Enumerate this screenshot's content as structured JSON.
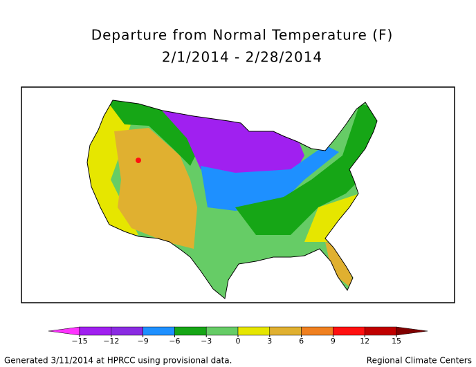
{
  "header": {
    "title": "Departure from Normal Temperature (F)",
    "subtitle": "2/1/2014 - 2/28/2014"
  },
  "legend": {
    "ticks": [
      {
        "value": -15,
        "label": "−15"
      },
      {
        "value": -12,
        "label": "−12"
      },
      {
        "value": -9,
        "label": "−9"
      },
      {
        "value": -6,
        "label": "−6"
      },
      {
        "value": -3,
        "label": "−3"
      },
      0,
      3,
      6,
      9,
      12,
      15
    ],
    "colors": [
      "#ff33ff",
      "#a020f0",
      "#8a2be2",
      "#1e90ff",
      "#16a616",
      "#66cc66",
      "#e6e600",
      "#e0b030",
      "#f08020",
      "#ff1010",
      "#c00000",
      "#800000"
    ]
  },
  "footer": {
    "left": "Generated 3/11/2014 at HPRCC using provisional data.",
    "right": "Regional Climate Centers"
  }
}
